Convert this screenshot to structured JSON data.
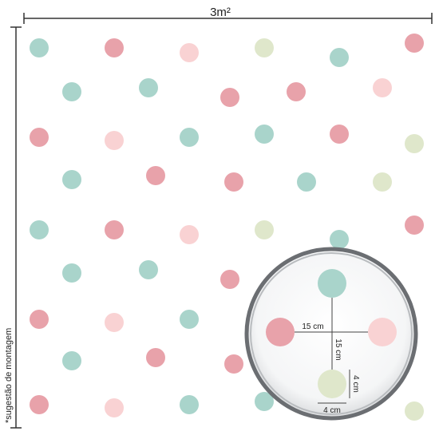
{
  "dimensions": {
    "width_label": "3m²",
    "note": "*sugestão de montagem"
  },
  "detail": {
    "horizontal_spacing": "15 cm",
    "vertical_spacing": "15 cm",
    "dot_height": "4 cm",
    "dot_width": "4 cm"
  }
}
